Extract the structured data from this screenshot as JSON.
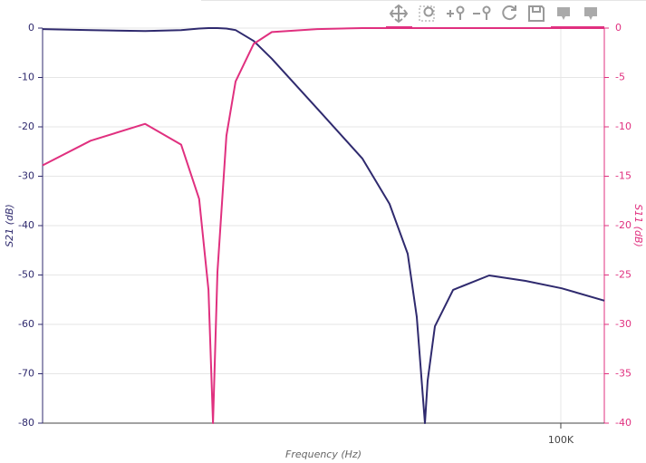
{
  "chart_data": {
    "type": "line",
    "xlabel": "Frequency (Hz)",
    "ylabel": "S21 (dB)",
    "y2label": "S11 (dB)",
    "xscale": "log",
    "grid": true,
    "xlim": [
      8254,
      123300
    ],
    "xticks": [
      {
        "value": 100000,
        "label": "100K"
      }
    ],
    "ylim": [
      -80,
      0
    ],
    "yticks": [
      0,
      -10,
      -20,
      -30,
      -40,
      -50,
      -60,
      -70,
      -80
    ],
    "y2lim": [
      -40,
      0
    ],
    "y2ticks": [
      0,
      -5,
      -10,
      -15,
      -20,
      -25,
      -30,
      -35,
      -40
    ],
    "x": [
      8254,
      10400,
      13520,
      16080,
      17540,
      18340,
      18750,
      19150,
      20000,
      20900,
      22800,
      24880,
      30950,
      38460,
      43850,
      47860,
      50000,
      51530,
      51990,
      52680,
      54540,
      59540,
      70830,
      84370,
      100400,
      123300
    ],
    "series": [
      {
        "color": "#2f2a6e",
        "values": [
          -0.2,
          -0.4,
          -0.6,
          -0.4,
          -0.1,
          0,
          0,
          0,
          -0.1,
          -0.4,
          -2.6,
          -6.2,
          -16.3,
          -26.4,
          -35.6,
          -45.7,
          -58.5,
          -75,
          -80,
          -71.4,
          -60.4,
          -53.0,
          -50.1,
          -51.2,
          -52.7,
          -55.2
        ]
      },
      {
        "color": "#e0307f",
        "axis": "y2",
        "values": [
          -13.9,
          -11.4,
          -9.7,
          -11.8,
          -17.3,
          -26.5,
          -40,
          -24.7,
          -10.9,
          -5.4,
          -1.6,
          -0.4,
          -0.1,
          0,
          0,
          0,
          0,
          0,
          0,
          0,
          0,
          0,
          0,
          0,
          0,
          0
        ]
      }
    ]
  }
}
